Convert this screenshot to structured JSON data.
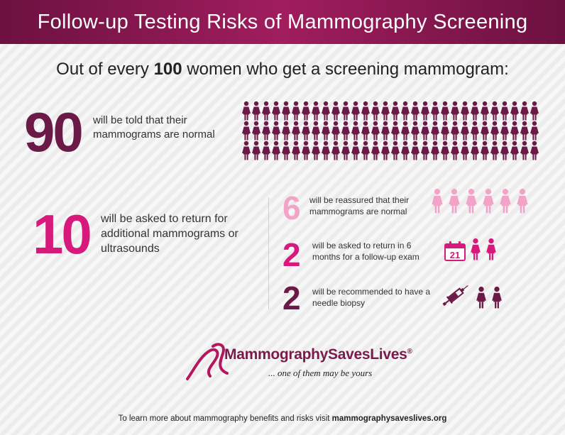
{
  "header": {
    "title": "Follow-up Testing Risks of Mammography Screening"
  },
  "intro": {
    "prefix": "Out of every ",
    "count": "100",
    "suffix": " women who get a screening mammogram:"
  },
  "group_normal": {
    "number": "90",
    "text": "will be told that their mammograms are normal",
    "icon_count": 90,
    "icon": "woman-icon",
    "color": "#6b1a47"
  },
  "group_return": {
    "number": "10",
    "text": "will be asked to return for additional mammograms or ultrasounds",
    "color": "#d6197a"
  },
  "outcomes": [
    {
      "number": "6",
      "text": "will be reassured that their mammograms are normal",
      "color": "#f4a3c8",
      "icon": "woman-icon",
      "icon_count": 6
    },
    {
      "number": "2",
      "text": "will be asked to return in 6 months for a follow-up exam",
      "color": "#d6197a",
      "icon": "woman-icon",
      "icon_count": 2,
      "extra_icon": "calendar-icon",
      "calendar_day": "21"
    },
    {
      "number": "2",
      "text": "will be recommended to have a needle biopsy",
      "color": "#6b1a47",
      "icon": "woman-icon",
      "icon_count": 2,
      "extra_icon": "syringe-icon"
    }
  ],
  "logo": {
    "name": "MammographySavesLives",
    "registered": "®",
    "tagline": "... one of them may be yours"
  },
  "footer": {
    "prefix": "To learn more about mammography benefits and risks visit ",
    "link": "mammographysaveslives.org"
  }
}
